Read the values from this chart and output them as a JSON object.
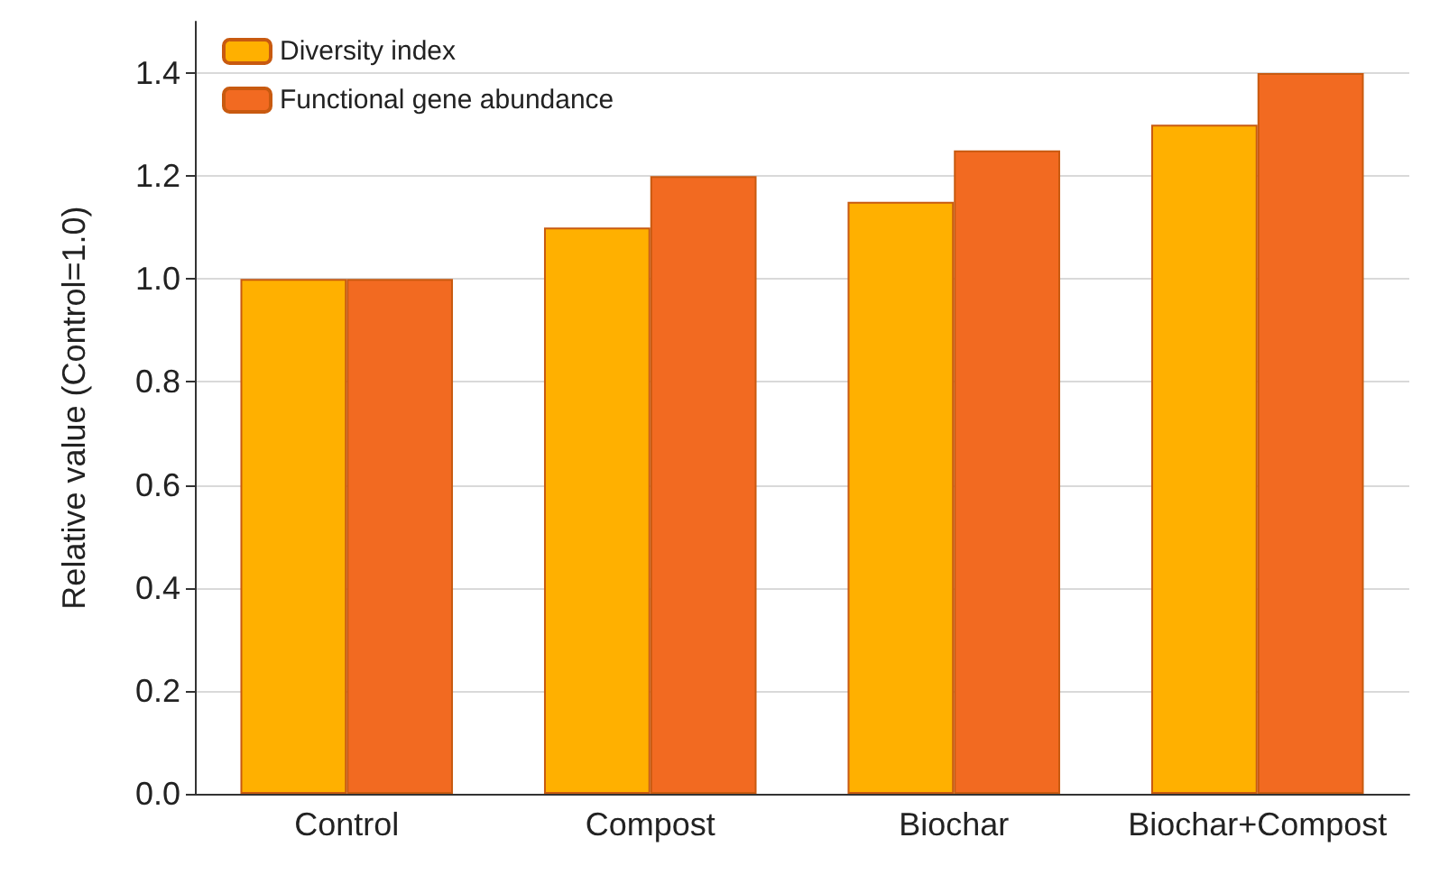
{
  "chart_data": {
    "type": "bar",
    "ylabel": "Relative value (Control=1.0)",
    "categories": [
      "Control",
      "Compost",
      "Biochar",
      "Biochar+Compost"
    ],
    "series": [
      {
        "name": "Diversity index",
        "color": "#ffb000",
        "values": [
          1.0,
          1.1,
          1.15,
          1.3
        ]
      },
      {
        "name": "Functional gene abundance",
        "color": "#f26a21",
        "values": [
          1.0,
          1.2,
          1.25,
          1.4
        ]
      }
    ],
    "ylim": [
      0,
      1.5
    ],
    "yticks": [
      {
        "value": 0,
        "label": "0.0"
      },
      {
        "value": 0.2,
        "label": "0.2"
      },
      {
        "value": 0.4,
        "label": "0.4"
      },
      {
        "value": 0.6,
        "label": "0.6"
      },
      {
        "value": 0.8,
        "label": "0.8"
      },
      {
        "value": 1.0,
        "label": "1.0"
      },
      {
        "value": 1.2,
        "label": "1.2"
      },
      {
        "value": 1.4,
        "label": "1.4"
      }
    ],
    "grid": "y",
    "legend": "top left"
  }
}
